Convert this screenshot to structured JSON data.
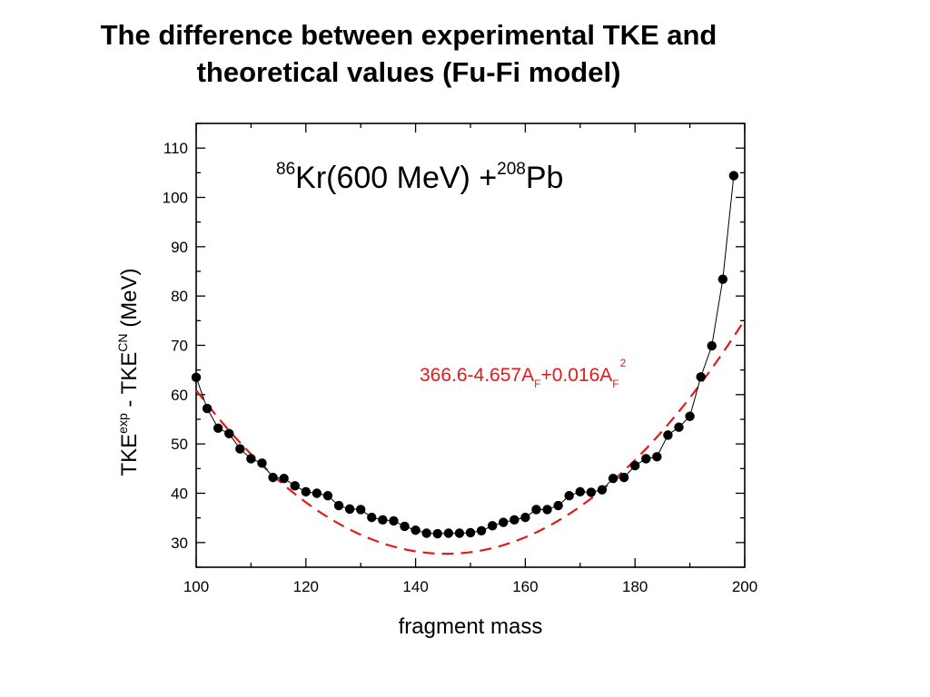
{
  "title": {
    "line1": "The difference between experimental TKE and",
    "line2": "theoretical values (Fu-Fi model)"
  },
  "reaction": {
    "proj_mass": "86",
    "proj_text": "Kr(600 MeV) +",
    "targ_mass": "208",
    "targ_text": "Pb"
  },
  "fit_label": {
    "text": "366.6-4.657A",
    "sub1": "F",
    "mid": "+0.016A",
    "sub2": "F",
    "sup": "2"
  },
  "axes": {
    "xlabel": "fragment mass",
    "ylabel_main": "TKE",
    "ylabel_sup1": "exp",
    "ylabel_mid": " - TKE",
    "ylabel_sup2": "CN",
    "ylabel_unit": " (MeV)"
  },
  "chart_data": {
    "type": "scatter",
    "xlim": [
      100,
      200
    ],
    "ylim": [
      25,
      115
    ],
    "xticks": [
      100,
      120,
      140,
      160,
      180,
      200
    ],
    "yticks": [
      30,
      40,
      50,
      60,
      70,
      80,
      90,
      100,
      110
    ],
    "grid": false,
    "series": [
      {
        "type": "line+markers",
        "color": "#000000",
        "x": [
          100,
          102,
          104,
          106,
          108,
          110,
          112,
          114,
          116,
          118,
          120,
          122,
          124,
          126,
          128,
          130,
          132,
          134,
          136,
          138,
          140,
          142,
          144,
          146,
          148,
          150,
          152,
          154,
          156,
          158,
          160,
          162,
          164,
          166,
          168,
          170,
          172,
          174,
          176,
          178,
          180,
          182,
          184,
          186,
          188,
          190,
          192,
          194,
          196,
          198
        ],
        "y": [
          63.5,
          57.2,
          53.2,
          52.1,
          49.0,
          47.0,
          46.1,
          43.2,
          43.0,
          41.5,
          40.3,
          40.0,
          39.5,
          37.5,
          36.8,
          36.7,
          35.1,
          34.6,
          34.4,
          33.3,
          32.5,
          31.9,
          31.8,
          31.9,
          31.9,
          32.0,
          32.4,
          33.4,
          34.1,
          34.6,
          35.1,
          36.7,
          36.7,
          37.5,
          39.5,
          40.3,
          40.2,
          40.7,
          43.0,
          43.2,
          45.6,
          47.0,
          47.4,
          51.8,
          53.4,
          55.6,
          63.6,
          69.9,
          83.4,
          104.4
        ]
      },
      {
        "type": "fit",
        "style": "dashed",
        "color": "#e31a1c",
        "equation": "366.6-4.657A_F+0.016A_F^2",
        "coefficients": [
          366.6,
          -4.657,
          0.016
        ],
        "x_range": [
          100,
          200
        ]
      }
    ]
  }
}
